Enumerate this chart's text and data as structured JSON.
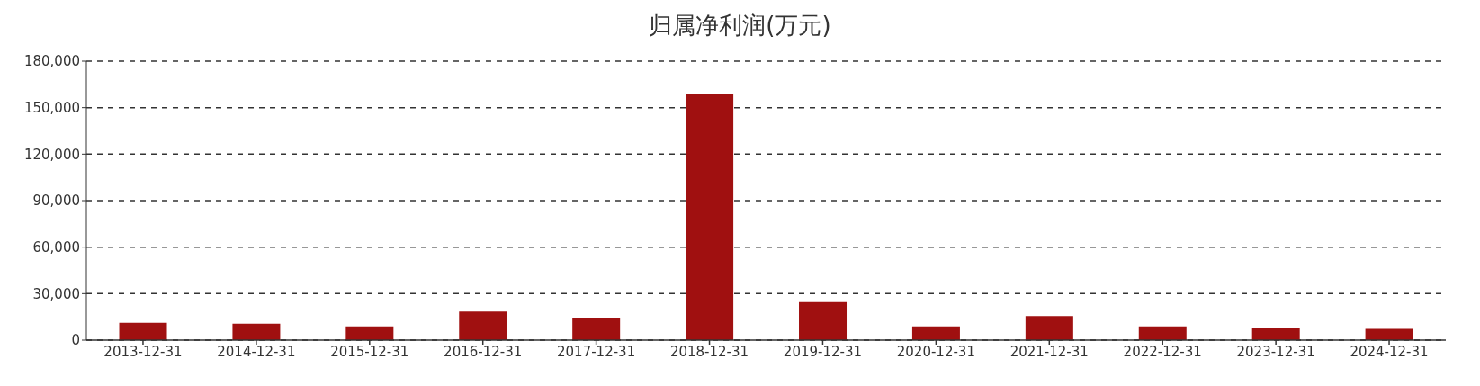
{
  "chart_data": {
    "type": "bar",
    "title": "归属净利润(万元)",
    "categories": [
      "2013-12-31",
      "2014-12-31",
      "2015-12-31",
      "2016-12-31",
      "2017-12-31",
      "2018-12-31",
      "2019-12-31",
      "2020-12-31",
      "2021-12-31",
      "2022-12-31",
      "2023-12-31",
      "2024-12-31"
    ],
    "values": [
      11200,
      10600,
      8800,
      18500,
      14500,
      159000,
      24500,
      8800,
      15500,
      8800,
      8200,
      7300
    ],
    "color": "#a01010",
    "ylim": [
      0,
      180000
    ],
    "yticks": [
      0,
      {
        "value": 30000,
        "label": "30,000"
      },
      {
        "value": 60000,
        "label": "60,000"
      },
      {
        "value": 90000,
        "label": "90,000"
      },
      {
        "value": 120000,
        "label": "120,000"
      },
      {
        "value": 150000,
        "label": "150,000"
      },
      {
        "value": 180000,
        "label": "180,000"
      }
    ],
    "grid": "y"
  }
}
